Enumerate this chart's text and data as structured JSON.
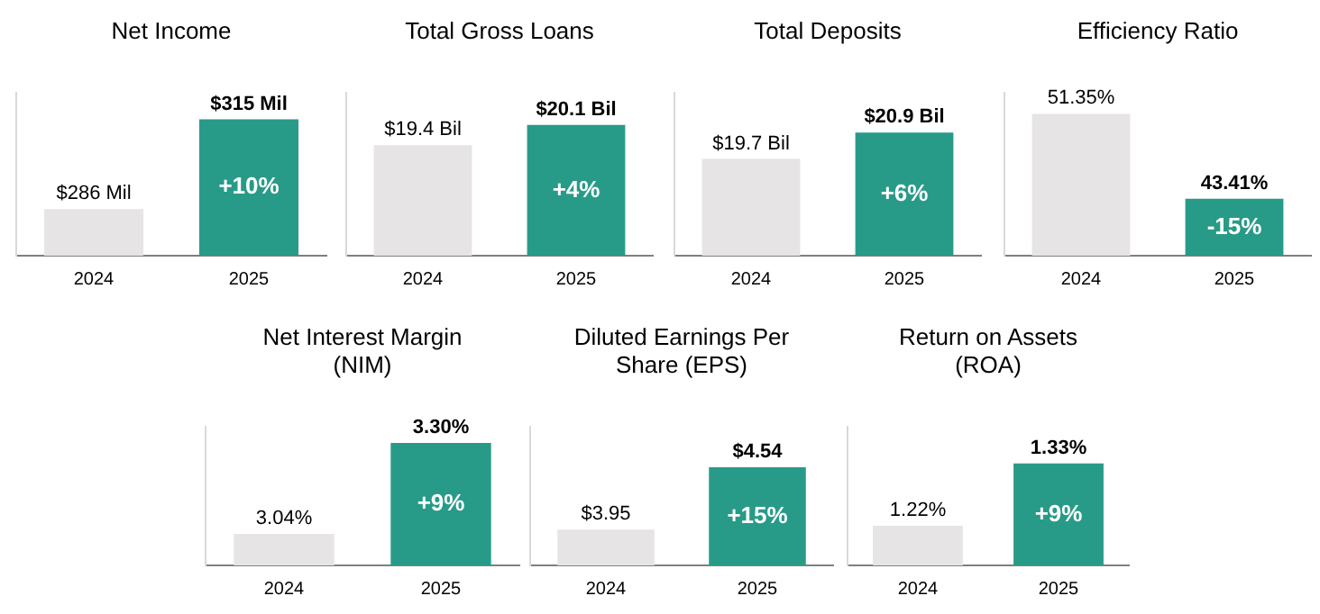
{
  "chart_data": [
    {
      "type": "bar",
      "title": "Net Income",
      "categories": [
        "2024",
        "2025"
      ],
      "values": [
        286,
        315
      ],
      "colors": [
        "#e6e4e4",
        "#289b88"
      ],
      "value_labels": [
        "$286 Mil",
        "$315 Mil"
      ],
      "ylim": [
        271,
        323.5
      ],
      "tick_labels": "x",
      "grid": false,
      "legend": false,
      "annotations": [
        "+10%"
      ]
    },
    {
      "type": "bar",
      "title": "Total Gross Loans",
      "categories": [
        "2024",
        "2025"
      ],
      "values": [
        19.4,
        20.1
      ],
      "colors": [
        "#e6e4e4",
        "#289b88"
      ],
      "value_labels": [
        "$19.4 Bil",
        "$20.1 Bil"
      ],
      "ylim": [
        15.6,
        21.2
      ],
      "tick_labels": "x",
      "grid": false,
      "legend": false,
      "annotations": [
        "+4%"
      ]
    },
    {
      "type": "bar",
      "title": "Total Deposits",
      "categories": [
        "2024",
        "2025"
      ],
      "values": [
        19.7,
        20.9
      ],
      "colors": [
        "#e6e4e4",
        "#289b88"
      ],
      "value_labels": [
        "$19.7 Bil",
        "$20.9 Bil"
      ],
      "ylim": [
        15.3,
        22.7
      ],
      "tick_labels": "x",
      "grid": false,
      "legend": false,
      "annotations": [
        "+6%"
      ]
    },
    {
      "type": "bar",
      "title": "Efficiency Ratio",
      "categories": [
        "2024",
        "2025"
      ],
      "values": [
        51.35,
        43.41
      ],
      "colors": [
        "#e6e4e4",
        "#289b88"
      ],
      "value_labels": [
        "51.35%",
        "43.41%"
      ],
      "ylim": [
        38.1,
        53.3
      ],
      "tick_labels": "x",
      "grid": false,
      "legend": false,
      "annotations": [
        "-15%"
      ]
    },
    {
      "type": "bar",
      "title": "Net Interest Margin\n(NIM)",
      "categories": [
        "2024",
        "2025"
      ],
      "values": [
        3.04,
        3.3
      ],
      "colors": [
        "#e6e4e4",
        "#289b88"
      ],
      "value_labels": [
        "3.04%",
        "3.30%"
      ],
      "ylim": [
        2.95,
        3.345
      ],
      "tick_labels": "x",
      "grid": false,
      "legend": false,
      "annotations": [
        "+9%"
      ]
    },
    {
      "type": "bar",
      "title": "Diluted Earnings Per\nShare (EPS)",
      "categories": [
        "2024",
        "2025"
      ],
      "values": [
        3.95,
        4.54
      ],
      "colors": [
        "#e6e4e4",
        "#289b88"
      ],
      "value_labels": [
        "$3.95",
        "$4.54"
      ],
      "ylim": [
        3.61,
        4.92
      ],
      "tick_labels": "x",
      "grid": false,
      "legend": false,
      "annotations": [
        "+15%"
      ]
    },
    {
      "type": "bar",
      "title": "Return on Assets\n(ROA)",
      "categories": [
        "2024",
        "2025"
      ],
      "values": [
        1.22,
        1.33
      ],
      "colors": [
        "#e6e4e4",
        "#289b88"
      ],
      "value_labels": [
        "1.22%",
        "1.33%"
      ],
      "ylim": [
        1.15,
        1.394
      ],
      "tick_labels": "x",
      "grid": false,
      "legend": false,
      "annotations": [
        "+9%"
      ]
    }
  ]
}
